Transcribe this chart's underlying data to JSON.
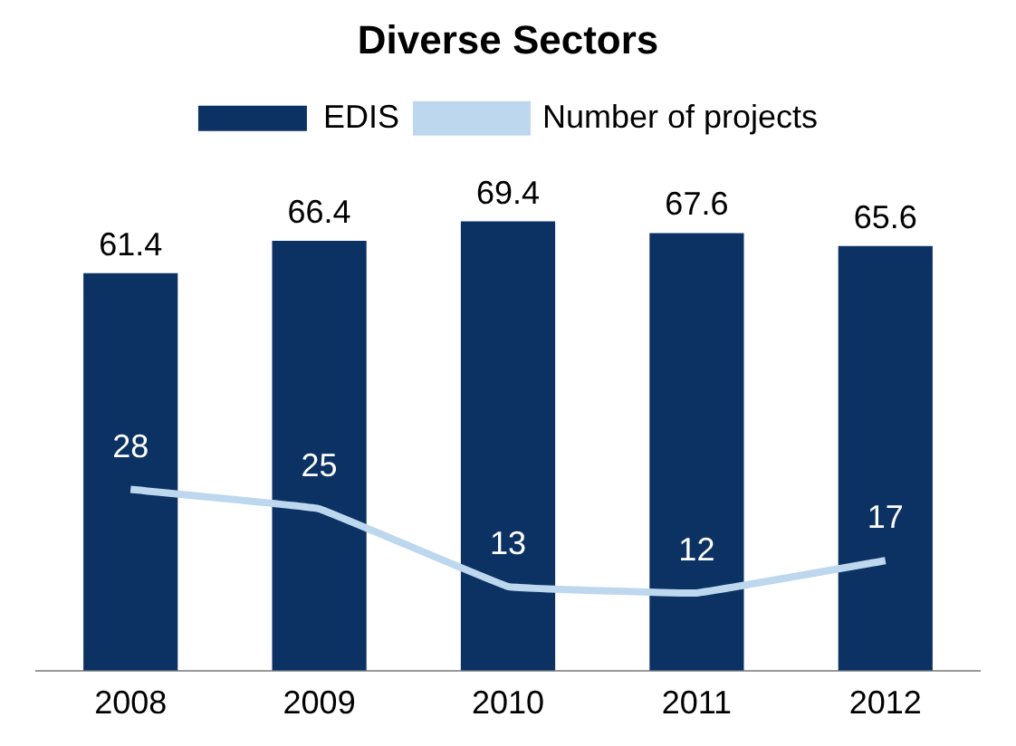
{
  "chart_data": {
    "type": "bar",
    "title": "Diverse Sectors",
    "categories": [
      "2008",
      "2009",
      "2010",
      "2011",
      "2012"
    ],
    "series": [
      {
        "name": "EDIS",
        "color": "#0b3263",
        "values": [
          61.4,
          66.4,
          69.4,
          67.6,
          65.6
        ]
      },
      {
        "name": "Number of projects",
        "type": "line",
        "color": "#bdd7ee",
        "values": [
          28,
          25,
          13,
          12,
          17
        ]
      }
    ],
    "tick_labels": "x",
    "data_labels": true,
    "grid": false,
    "legend": "top",
    "marker": "none"
  }
}
